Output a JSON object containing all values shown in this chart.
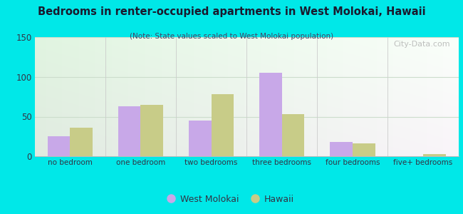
{
  "title": "Bedrooms in renter-occupied apartments in West Molokai, Hawaii",
  "subtitle": "(Note: State values scaled to West Molokai population)",
  "categories": [
    "no bedroom",
    "one bedroom",
    "two bedrooms",
    "three bedrooms",
    "four bedrooms",
    "five+ bedrooms"
  ],
  "west_molokai": [
    25,
    63,
    45,
    105,
    18,
    0
  ],
  "hawaii": [
    36,
    65,
    78,
    53,
    16,
    3
  ],
  "west_molokai_color": "#c8a8e8",
  "hawaii_color": "#c8cc88",
  "background_outer": "#00e8e8",
  "ylim": [
    0,
    150
  ],
  "yticks": [
    0,
    50,
    100,
    150
  ],
  "bar_width": 0.32,
  "watermark": "City-Data.com",
  "legend_wm_color": "#c8a8e8",
  "legend_hi_color": "#c8cc88"
}
